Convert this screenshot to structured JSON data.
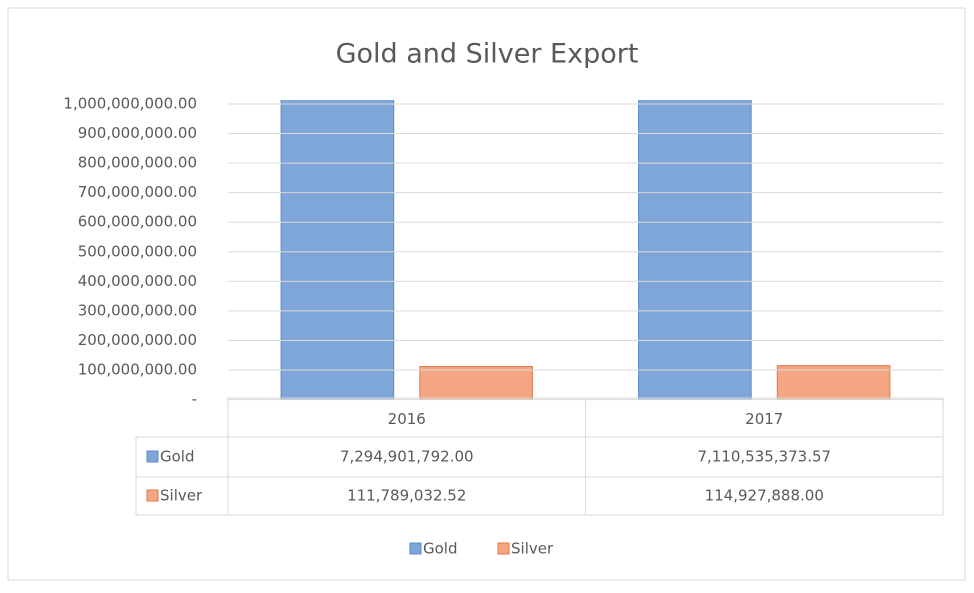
{
  "chart_data": {
    "type": "bar",
    "title": "Gold and Silver Export",
    "categories": [
      "2016",
      "2017"
    ],
    "series": [
      {
        "name": "Gold",
        "color": "#7ea6d8",
        "values": [
          7294901792.0,
          7110535373.57
        ],
        "value_labels": [
          "7,294,901,792.00",
          "7,110,535,373.57"
        ]
      },
      {
        "name": "Silver",
        "color": "#f4a582",
        "values": [
          111789032.52,
          114927888.0
        ],
        "value_labels": [
          "111,789,032.52",
          "114,927,888.00"
        ]
      }
    ],
    "ylim": [
      0,
      1000000000
    ],
    "yticks": [
      {
        "value": 0,
        "label": "-"
      },
      {
        "value": 100000000,
        "label": "100,000,000.00"
      },
      {
        "value": 200000000,
        "label": "200,000,000.00"
      },
      {
        "value": 300000000,
        "label": "300,000,000.00"
      },
      {
        "value": 400000000,
        "label": "400,000,000.00"
      },
      {
        "value": 500000000,
        "label": "500,000,000.00"
      },
      {
        "value": 600000000,
        "label": "600,000,000.00"
      },
      {
        "value": 700000000,
        "label": "700,000,000.00"
      },
      {
        "value": 800000000,
        "label": "800,000,000.00"
      },
      {
        "value": 900000000,
        "label": "900,000,000.00"
      },
      {
        "value": 1000000000,
        "label": "1,000,000,000.00"
      }
    ],
    "grid": true,
    "legend": "bottom"
  }
}
